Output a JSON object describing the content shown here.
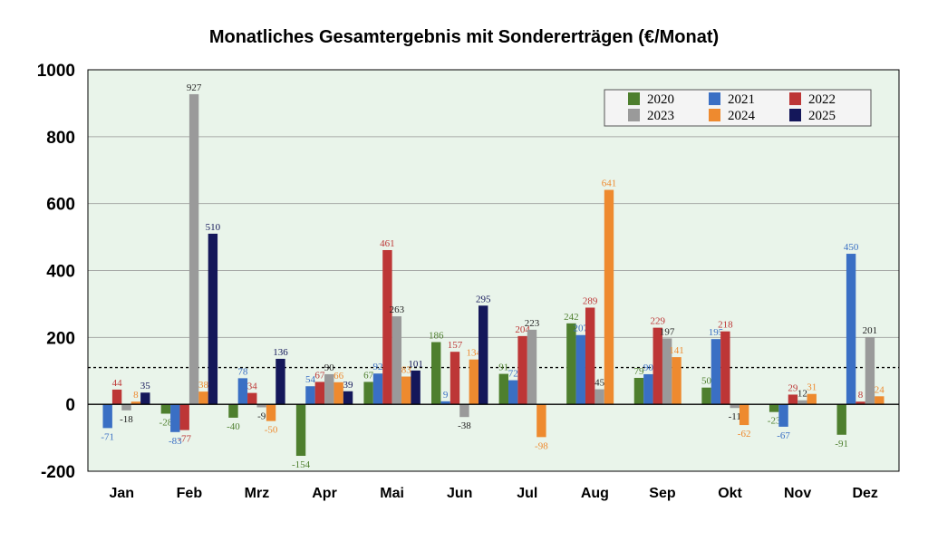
{
  "title": "Monatliches Gesamtergebnis mit Sondererträgen (€/Monat)",
  "chart_data": {
    "type": "bar",
    "categories": [
      "Jan",
      "Feb",
      "Mrz",
      "Apr",
      "Mai",
      "Jun",
      "Jul",
      "Aug",
      "Sep",
      "Okt",
      "Nov",
      "Dez"
    ],
    "ylim": [
      -200,
      1000
    ],
    "yticks": [
      -200,
      0,
      200,
      400,
      600,
      800,
      1000
    ],
    "reference_line": 110,
    "grid": true,
    "legend_position": "top-right",
    "series": [
      {
        "name": "2020",
        "color": "#4e7f2e",
        "values": [
          null,
          -28,
          -40,
          -154,
          67,
          186,
          91,
          242,
          79,
          50,
          -23,
          -91
        ]
      },
      {
        "name": "2021",
        "color": "#3a6fc4",
        "values": [
          -71,
          -83,
          78,
          54,
          92,
          9,
          72,
          207,
          90,
          195,
          -67,
          450
        ]
      },
      {
        "name": "2022",
        "color": "#bd3636",
        "values": [
          44,
          -77,
          34,
          67,
          461,
          157,
          204,
          289,
          229,
          218,
          29,
          8
        ]
      },
      {
        "name": "2023",
        "color": "#9a9a9a",
        "values": [
          -18,
          927,
          -9,
          90,
          263,
          -38,
          223,
          45,
          197,
          -11,
          12,
          201
        ]
      },
      {
        "name": "2024",
        "color": "#ee8a2f",
        "values": [
          8,
          38,
          -50,
          66,
          83,
          134,
          -98,
          641,
          141,
          -62,
          31,
          24
        ]
      },
      {
        "name": "2025",
        "color": "#14175a",
        "values": [
          35,
          510,
          136,
          39,
          101,
          295,
          null,
          null,
          null,
          null,
          null,
          null
        ]
      }
    ]
  }
}
